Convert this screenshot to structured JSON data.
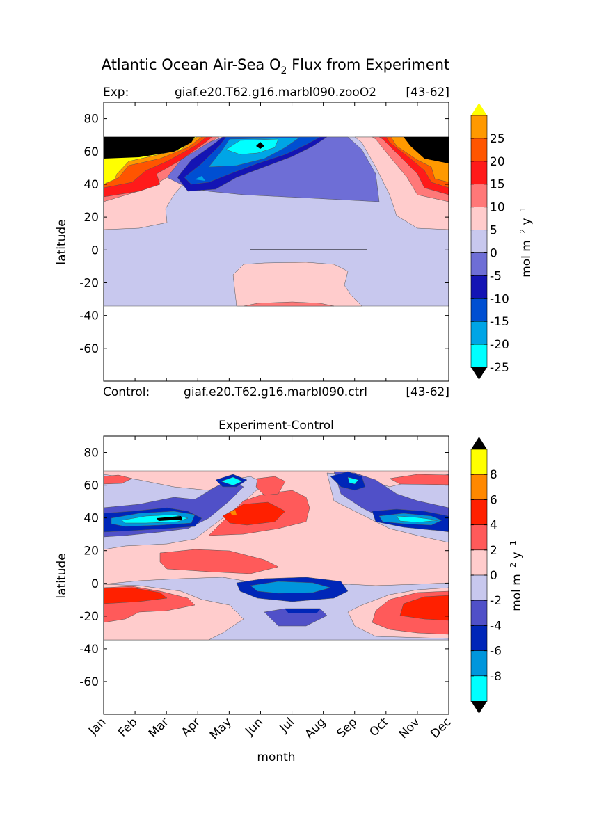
{
  "title": "Atlantic Ocean Air-Sea O",
  "title_sub": "2",
  "title_rest": " Flux from Experiment",
  "colors": {
    "top_levels": [
      "#00ffff",
      "#00a5e6",
      "#004fd2",
      "#1414b4",
      "#6e6ed6",
      "#c8c8ee",
      "#ffcccc",
      "#ff7878",
      "#ff1a1a",
      "#ff5500",
      "#ff9900",
      "#ffff00",
      "#000000"
    ],
    "bottom_levels": [
      "#00ffff",
      "#0096dc",
      "#0026b8",
      "#5050c8",
      "#c8c8ee",
      "#ffcccc",
      "#ff5a5a",
      "#ff2000",
      "#ff8800",
      "#ffff00"
    ]
  },
  "chart_data": [
    {
      "type": "heatmap",
      "panel": "top",
      "header_left": "Exp:",
      "header_mid": "giaf.e20.T62.g16.marbl090.zooO2",
      "header_right": "[43-62]",
      "footer_left": "Control:",
      "footer_mid": "giaf.e20.T62.g16.marbl090.ctrl",
      "footer_right": "[43-62]",
      "xlabel": "",
      "ylabel": "latitude",
      "yticks": [
        80,
        60,
        40,
        20,
        0,
        -20,
        -40,
        -60
      ],
      "ylim": [
        -80,
        90
      ],
      "xlim": [
        0,
        11
      ],
      "data_lat_range": [
        -34,
        69
      ],
      "colorbar_label": "mol m",
      "colorbar_sup1": "−2",
      "colorbar_mid": " y",
      "colorbar_sup2": "−1",
      "colorbar_ticks": [
        "25",
        "20",
        "15",
        "10",
        "5",
        "0",
        "-5",
        "-10",
        "-15",
        "-20",
        "-25"
      ],
      "levels": [
        -30,
        -25,
        -20,
        -15,
        -10,
        -5,
        0,
        5,
        10,
        15,
        20,
        25,
        30
      ],
      "extend": "both",
      "regions": [
        {
          "label": "high-latitude winter outgassing band",
          "sign": "positive",
          "months": "Jan-Mar, Oct-Dec",
          "lat": [
            30,
            69
          ],
          "max_value": ">30"
        },
        {
          "label": "spring uptake maximum",
          "sign": "negative",
          "months": "Mar-Aug",
          "lat": [
            35,
            69
          ],
          "min_value": "<-30",
          "center": {
            "month": "Jun",
            "lat": 63
          }
        },
        {
          "label": "tropical weak uptake",
          "sign": "negative",
          "range": [
            -5,
            0
          ],
          "lat": [
            -34,
            30
          ]
        },
        {
          "label": "southern subtropical outgassing",
          "sign": "positive",
          "range": [
            0,
            5
          ],
          "months": "May-Sep",
          "lat": [
            -34,
            -8
          ]
        }
      ]
    },
    {
      "type": "heatmap",
      "panel": "bottom",
      "title": "Experiment-Control",
      "xlabel": "month",
      "ylabel": "latitude",
      "categories": [
        "Jan",
        "Feb",
        "Mar",
        "Apr",
        "May",
        "Jun",
        "Jul",
        "Aug",
        "Sep",
        "Oct",
        "Nov",
        "Dec"
      ],
      "yticks": [
        80,
        60,
        40,
        20,
        0,
        -20,
        -40,
        -60
      ],
      "ylim": [
        -80,
        90
      ],
      "xlim": [
        0,
        11
      ],
      "data_lat_range": [
        -34,
        69
      ],
      "colorbar_label": "mol m",
      "colorbar_sup1": "−2",
      "colorbar_mid": " y",
      "colorbar_sup2": "−1",
      "colorbar_ticks": [
        "8",
        "6",
        "4",
        "2",
        "0",
        "-2",
        "-4",
        "-6",
        "-8"
      ],
      "levels": [
        -10,
        -8,
        -6,
        -4,
        -2,
        0,
        2,
        4,
        6,
        8,
        10
      ],
      "extend": "both",
      "regions": [
        {
          "label": "negative band near 40N",
          "months": "Jan-Apr, Sep-Dec",
          "lat": [
            35,
            45
          ],
          "min_value": "<-10"
        },
        {
          "label": "positive core 40-50N",
          "months": "May-Jul",
          "lat": [
            35,
            50
          ],
          "max_value": "6"
        },
        {
          "label": "equatorial negative",
          "months": "May-Aug",
          "lat": [
            -3,
            3
          ],
          "min_value": "-8"
        },
        {
          "label": "southern positive",
          "months": "Jan-Mar, Oct-Dec",
          "lat": [
            -30,
            -3
          ],
          "max_value": "4"
        }
      ]
    }
  ]
}
